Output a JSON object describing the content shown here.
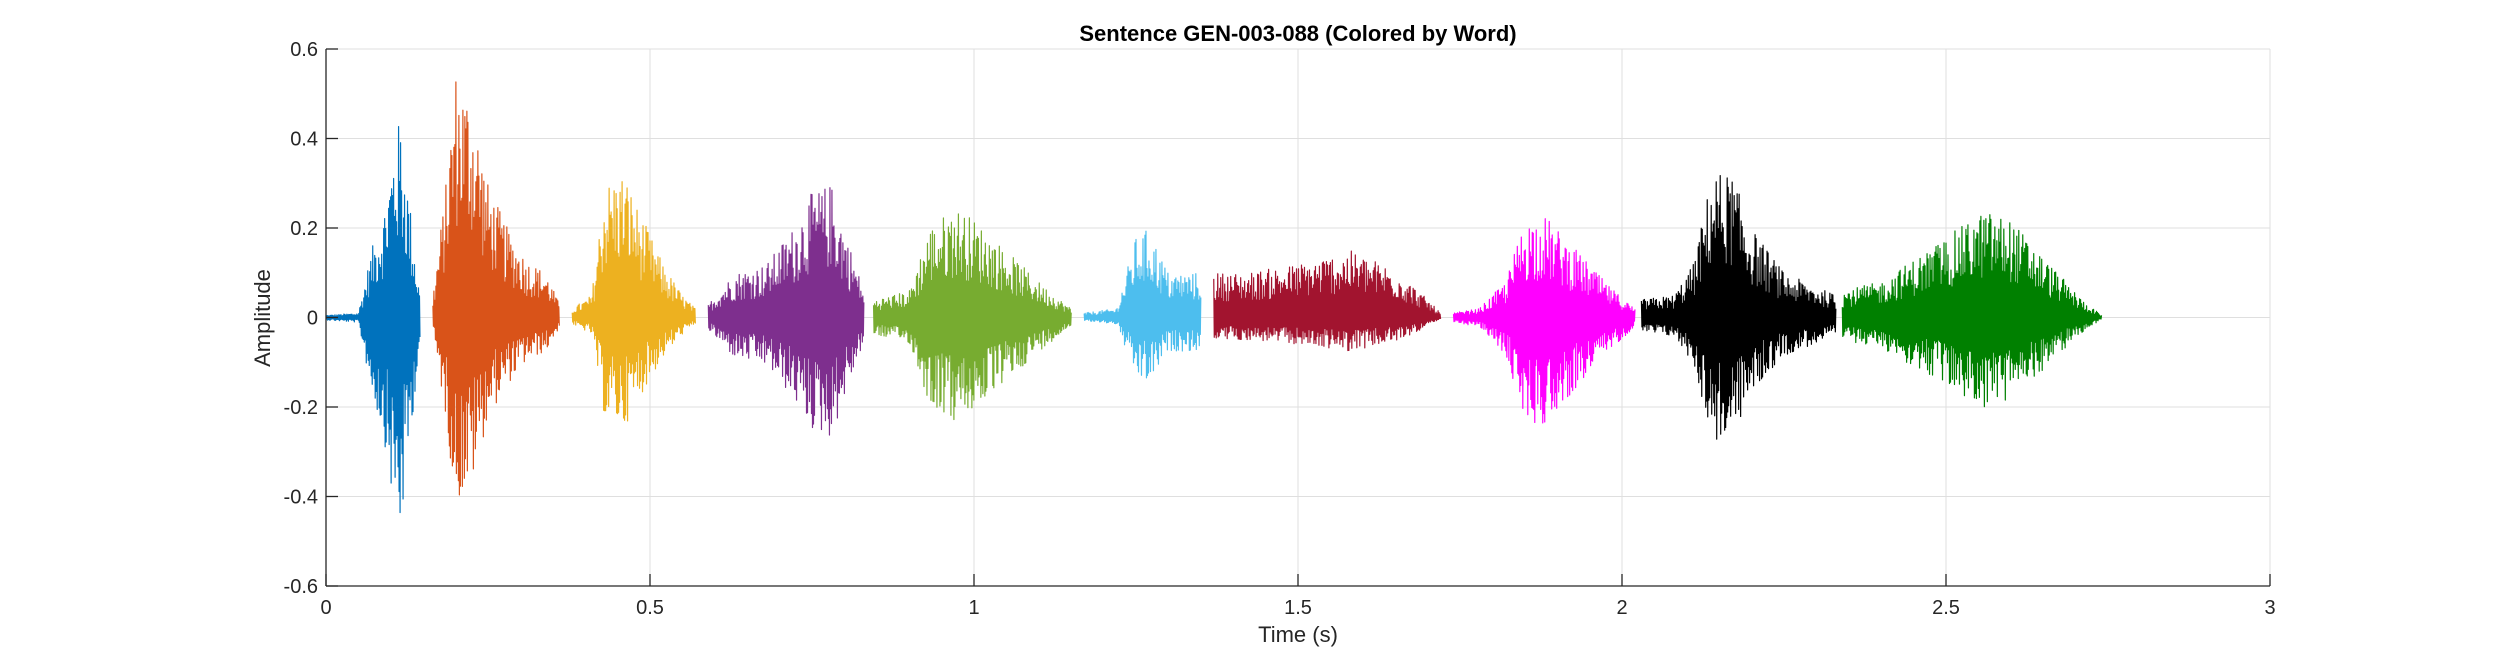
{
  "chart_data": {
    "type": "line",
    "title": "Sentence GEN-003-088 (Colored by Word)",
    "xlabel": "Time (s)",
    "ylabel": "Amplitude",
    "xlim": [
      0,
      3
    ],
    "ylim": [
      -0.6,
      0.6
    ],
    "xticks": [
      0,
      0.5,
      1,
      1.5,
      2,
      2.5,
      3
    ],
    "xtick_labels": [
      "0",
      "0.5",
      "1",
      "1.5",
      "2",
      "2.5",
      "3"
    ],
    "yticks": [
      -0.6,
      -0.4,
      -0.2,
      0,
      0.2,
      0.4,
      0.6
    ],
    "ytick_labels": [
      "-0.6",
      "-0.4",
      "-0.2",
      "0",
      "0.2",
      "0.4",
      "0.6"
    ],
    "grid": true,
    "series": [
      {
        "color": "#0072BD",
        "start": 0.0,
        "end": 0.145,
        "env": [
          [
            0.0,
            0.005
          ],
          [
            0.05,
            0.01
          ],
          [
            0.07,
            0.15
          ],
          [
            0.09,
            0.25
          ],
          [
            0.105,
            0.4
          ],
          [
            0.115,
            0.45
          ],
          [
            0.13,
            0.25
          ],
          [
            0.145,
            0.05
          ]
        ],
        "neg": 1.1
      },
      {
        "color": "#D95319",
        "start": 0.165,
        "end": 0.36,
        "env": [
          [
            0.165,
            0.05
          ],
          [
            0.185,
            0.3
          ],
          [
            0.2,
            0.56
          ],
          [
            0.225,
            0.5
          ],
          [
            0.25,
            0.3
          ],
          [
            0.28,
            0.2
          ],
          [
            0.31,
            0.13
          ],
          [
            0.34,
            0.1
          ],
          [
            0.36,
            0.03
          ]
        ],
        "neg": 0.75
      },
      {
        "color": "#EDB120",
        "start": 0.38,
        "end": 0.57,
        "env": [
          [
            0.38,
            0.02
          ],
          [
            0.41,
            0.05
          ],
          [
            0.43,
            0.3
          ],
          [
            0.46,
            0.33
          ],
          [
            0.48,
            0.25
          ],
          [
            0.52,
            0.12
          ],
          [
            0.55,
            0.05
          ],
          [
            0.57,
            0.02
          ]
        ],
        "neg": 0.75
      },
      {
        "color": "#7E2F8E",
        "start": 0.59,
        "end": 0.83,
        "env": [
          [
            0.59,
            0.03
          ],
          [
            0.63,
            0.1
          ],
          [
            0.68,
            0.12
          ],
          [
            0.72,
            0.2
          ],
          [
            0.75,
            0.28
          ],
          [
            0.78,
            0.3
          ],
          [
            0.8,
            0.2
          ],
          [
            0.83,
            0.06
          ]
        ],
        "neg": 0.9
      },
      {
        "color": "#77AC30",
        "start": 0.845,
        "end": 1.15,
        "env": [
          [
            0.845,
            0.04
          ],
          [
            0.9,
            0.06
          ],
          [
            0.93,
            0.2
          ],
          [
            0.97,
            0.25
          ],
          [
            1.0,
            0.22
          ],
          [
            1.05,
            0.15
          ],
          [
            1.1,
            0.08
          ],
          [
            1.15,
            0.02
          ]
        ],
        "neg": 0.95
      },
      {
        "color": "#4DBEEE",
        "start": 1.17,
        "end": 1.35,
        "env": [
          [
            1.17,
            0.01
          ],
          [
            1.22,
            0.02
          ],
          [
            1.25,
            0.18
          ],
          [
            1.27,
            0.2
          ],
          [
            1.3,
            0.1
          ],
          [
            1.35,
            0.1
          ]
        ],
        "neg": 0.75
      },
      {
        "color": "#A2142F",
        "start": 1.37,
        "end": 1.72,
        "env": [
          [
            1.37,
            0.1
          ],
          [
            1.42,
            0.1
          ],
          [
            1.5,
            0.12
          ],
          [
            1.58,
            0.15
          ],
          [
            1.65,
            0.11
          ],
          [
            1.7,
            0.04
          ],
          [
            1.72,
            0.01
          ]
        ],
        "neg": 0.5
      },
      {
        "color": "#FF00FF",
        "start": 1.74,
        "end": 2.02,
        "env": [
          [
            1.74,
            0.01
          ],
          [
            1.78,
            0.02
          ],
          [
            1.82,
            0.08
          ],
          [
            1.85,
            0.22
          ],
          [
            1.88,
            0.23
          ],
          [
            1.93,
            0.15
          ],
          [
            1.98,
            0.07
          ],
          [
            2.02,
            0.02
          ]
        ],
        "neg": 1.05
      },
      {
        "color": "#000000",
        "start": 2.03,
        "end": 2.33,
        "env": [
          [
            2.03,
            0.04
          ],
          [
            2.08,
            0.05
          ],
          [
            2.11,
            0.12
          ],
          [
            2.14,
            0.33
          ],
          [
            2.17,
            0.32
          ],
          [
            2.2,
            0.2
          ],
          [
            2.25,
            0.1
          ],
          [
            2.33,
            0.05
          ]
        ],
        "neg": 0.85
      },
      {
        "color": "#008000",
        "start": 2.34,
        "end": 2.74,
        "env": [
          [
            2.34,
            0.06
          ],
          [
            2.4,
            0.08
          ],
          [
            2.46,
            0.14
          ],
          [
            2.52,
            0.2
          ],
          [
            2.56,
            0.24
          ],
          [
            2.6,
            0.22
          ],
          [
            2.66,
            0.12
          ],
          [
            2.71,
            0.04
          ],
          [
            2.74,
            0.005
          ]
        ],
        "neg": 0.85
      }
    ]
  }
}
